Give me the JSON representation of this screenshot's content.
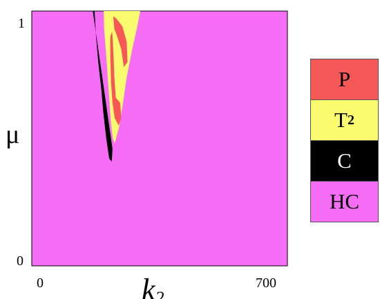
{
  "chart_data": {
    "type": "heatmap",
    "title": "",
    "xlabel": "k",
    "xlabel_sub": "2",
    "ylabel": "μ",
    "xlim": [
      0,
      700
    ],
    "ylim": [
      0,
      1
    ],
    "x_ticks": [
      "0",
      "700"
    ],
    "y_ticks": [
      "0",
      "1"
    ],
    "background_class": "HC",
    "classes": [
      {
        "label": "P",
        "sub": "",
        "color": "#f65858"
      },
      {
        "label": "T",
        "sub": "2",
        "color": "#fbfb70"
      },
      {
        "label": "C",
        "sub": "",
        "color": "#000000"
      },
      {
        "label": "HC",
        "sub": "",
        "color": "#f56cf5"
      }
    ],
    "regions": {
      "C": [
        [
          167,
          1.0
        ],
        [
          175,
          0.92
        ],
        [
          185,
          0.82
        ],
        [
          195,
          0.72
        ],
        [
          205,
          0.62
        ],
        [
          215,
          0.52
        ],
        [
          221,
          0.46
        ],
        [
          219,
          0.41
        ],
        [
          212,
          0.42
        ],
        [
          204,
          0.5
        ],
        [
          196,
          0.6
        ],
        [
          190,
          0.7
        ],
        [
          182,
          0.8
        ],
        [
          176,
          0.9
        ],
        [
          172,
          1.0
        ]
      ],
      "T2": [
        [
          197,
          1.0
        ],
        [
          297,
          1.0
        ],
        [
          289,
          0.94
        ],
        [
          275,
          0.85
        ],
        [
          260,
          0.74
        ],
        [
          250,
          0.64
        ],
        [
          240,
          0.55
        ],
        [
          227,
          0.48
        ],
        [
          222,
          0.5
        ],
        [
          217,
          0.56
        ],
        [
          213,
          0.64
        ],
        [
          208,
          0.74
        ],
        [
          203,
          0.84
        ],
        [
          198,
          0.93
        ]
      ],
      "P": [
        [
          215,
          0.9
        ],
        [
          220,
          0.92
        ],
        [
          222,
          0.88
        ],
        [
          224,
          0.82
        ],
        [
          226,
          0.74
        ],
        [
          230,
          0.66
        ],
        [
          242,
          0.64
        ],
        [
          245,
          0.58
        ],
        [
          238,
          0.55
        ],
        [
          227,
          0.58
        ],
        [
          221,
          0.64
        ],
        [
          217,
          0.72
        ],
        [
          215,
          0.82
        ]
      ],
      "P_arc": [
        [
          223,
          0.98
        ],
        [
          232,
          0.97
        ],
        [
          248,
          0.94
        ],
        [
          260,
          0.88
        ],
        [
          262,
          0.8
        ],
        [
          252,
          0.78
        ],
        [
          245,
          0.85
        ],
        [
          234,
          0.9
        ],
        [
          226,
          0.93
        ]
      ]
    }
  }
}
